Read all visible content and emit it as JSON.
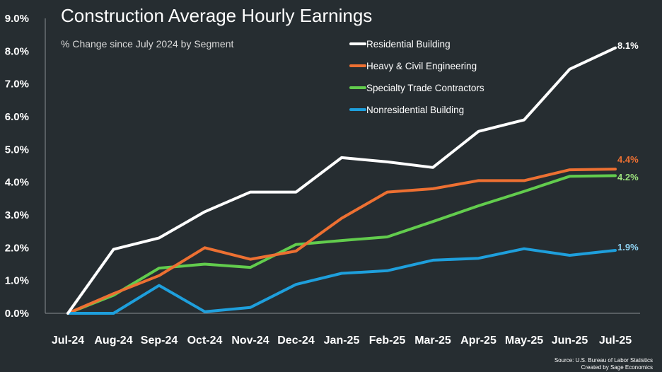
{
  "chart_data": {
    "type": "line",
    "title": "Construction Average Hourly Earnings",
    "subtitle": "% Change since July 2024 by Segment",
    "categories": [
      "Jul-24",
      "Aug-24",
      "Sep-24",
      "Oct-24",
      "Nov-24",
      "Dec-24",
      "Jan-25",
      "Feb-25",
      "Mar-25",
      "Apr-25",
      "May-25",
      "Jun-25",
      "Jul-25"
    ],
    "y_ticks": [
      "0.0%",
      "1.0%",
      "2.0%",
      "3.0%",
      "4.0%",
      "5.0%",
      "6.0%",
      "7.0%",
      "8.0%",
      "9.0%"
    ],
    "ylim": [
      0,
      9
    ],
    "grid": false,
    "legend_position": "top-right",
    "series": [
      {
        "name": "Residential Building",
        "color": "#ffffff",
        "end_label": "8.1%",
        "end_label_color": "#ffffff",
        "values": [
          0,
          1.95,
          2.3,
          3.1,
          3.7,
          3.7,
          4.75,
          4.62,
          4.45,
          5.55,
          5.9,
          7.45,
          8.1
        ]
      },
      {
        "name": "Heavy & Civil Engineering",
        "color": "#ed7032",
        "end_label": "4.4%",
        "end_label_color": "#ed7032",
        "values": [
          0,
          0.6,
          1.15,
          2.0,
          1.65,
          1.9,
          2.9,
          3.7,
          3.8,
          4.05,
          4.05,
          4.38,
          4.4
        ]
      },
      {
        "name": "Specialty Trade Contractors",
        "color": "#62cc4d",
        "end_label": "4.2%",
        "end_label_color": "#9be07c",
        "values": [
          0,
          0.55,
          1.38,
          1.5,
          1.4,
          2.1,
          2.22,
          2.33,
          2.8,
          3.28,
          3.72,
          4.18,
          4.2
        ]
      },
      {
        "name": "Nonresidential Building",
        "color": "#1e9fdc",
        "end_label": "1.9%",
        "end_label_color": "#8fd3f3",
        "values": [
          0,
          0,
          0.85,
          0.05,
          0.18,
          0.88,
          1.22,
          1.3,
          1.62,
          1.68,
          1.97,
          1.77,
          1.92
        ]
      }
    ],
    "source": "Source: U.S. Bureau of Labor Statistics",
    "credit": "Created by Sage Economics"
  }
}
